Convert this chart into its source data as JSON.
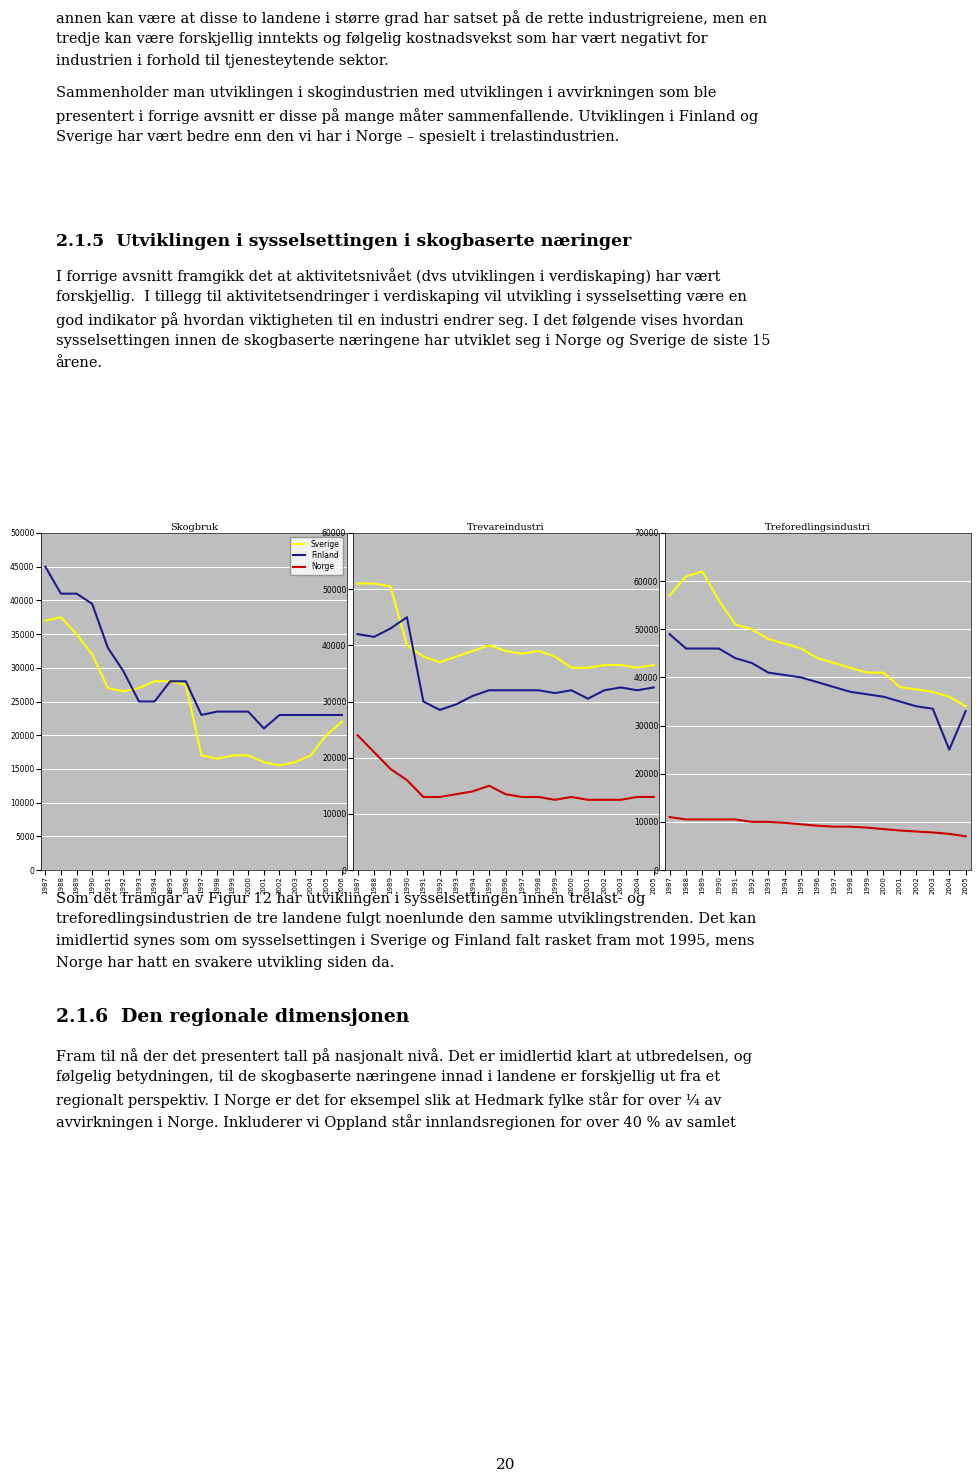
{
  "page_text_top": [
    "annen kan være at disse to landene i større grad har satset på de rette industrigreiene, men en",
    "tredje kan være forskjellig inntekts og følgelig kostnadsvekst som har vært negativt for",
    "industrien i forhold til tjenesteytende sektor.",
    "",
    "Sammenholder man utviklingen i skogindustrien med utviklingen i avvirkningen som ble",
    "presentert i forrige avsnitt er disse på mange måter sammenfallende. Utviklingen i Finland og",
    "Sverige har vært bedre enn den vi har i Norge – spesielt i trelastindustrien."
  ],
  "section_heading": "2.1.5  Utviklingen i sysselsettingen i skogbaserte næringer",
  "section_text": [
    "I forrige avsnitt framgikk det at aktivitetsnivået (dvs utviklingen i verdiskaping) har vært",
    "forskjellig.  I tillegg til aktivitetsendringer i verdiskaping vil utvikling i sysselsetting være en",
    "god indikator på hvordan viktigheten til en industri endrer seg. I det følgende vises hvordan",
    "sysselsettingen innen de skogbaserte næringene har utviklet seg i Norge og Sverige de siste 15",
    "årene."
  ],
  "bottom_text_1": [
    "Som det framgår av Figur 12 har utviklingen i sysselsettingen innen trelast- og",
    "treforedlingsindustrien de tre landene fulgt noenlunde den samme utviklingstrenden. Det kan",
    "imidlertid synes som om sysselsettingen i Sverige og Finland falt rasket fram mot 1995, mens",
    "Norge har hatt en svakere utvikling siden da."
  ],
  "section2_heading": "2.1.6  Den regionale dimensjonen",
  "bottom_text_2": [
    "Fram til nå der det presentert tall på nasjonalt nivå. Det er imidlertid klart at utbredelsen, og",
    "følgelig betydningen, til de skogbaserte næringene innad i landene er forskjellig ut fra et",
    "regionalt perspektiv. I Norge er det for eksempel slik at Hedmark fylke står for over ¼ av",
    "avvirkningen i Norge. Inkluderer vi Oppland står innlandsregionen for over 40 % av samlet"
  ],
  "page_number": "20",
  "charts": [
    {
      "title": "Skogbruk",
      "ylim": [
        0,
        50000
      ],
      "yticks": [
        0,
        5000,
        10000,
        15000,
        20000,
        25000,
        30000,
        35000,
        40000,
        45000,
        50000
      ],
      "years": [
        1987,
        1988,
        1989,
        1990,
        1991,
        1992,
        1993,
        1994,
        1995,
        1996,
        1997,
        1998,
        1999,
        2000,
        2001,
        2002,
        2003,
        2004,
        2005,
        2006
      ],
      "sverige": [
        37000,
        37500,
        35000,
        32000,
        27000,
        26500,
        27000,
        28000,
        28000,
        27500,
        17000,
        16500,
        17000,
        17000,
        16000,
        15500,
        16000,
        17000,
        20000,
        22000
      ],
      "finland": [
        45000,
        41000,
        41000,
        39500,
        33000,
        29500,
        25000,
        25000,
        28000,
        28000,
        23000,
        23500,
        23500,
        23500,
        21000,
        23000,
        23000,
        23000,
        23000,
        23000
      ],
      "norge": null,
      "has_legend": true
    },
    {
      "title": "Trevareindustri",
      "ylim": [
        0,
        60000
      ],
      "yticks": [
        0,
        10000,
        20000,
        30000,
        40000,
        50000,
        60000
      ],
      "years": [
        1987,
        1988,
        1989,
        1990,
        1991,
        1992,
        1993,
        1994,
        1995,
        1996,
        1997,
        1998,
        1999,
        2000,
        2001,
        2002,
        2003,
        2004,
        2005
      ],
      "sverige": [
        51000,
        51000,
        50500,
        40000,
        38000,
        37000,
        38000,
        39000,
        40000,
        39000,
        38500,
        39000,
        38000,
        36000,
        36000,
        36500,
        36500,
        36000,
        36500
      ],
      "finland": [
        42000,
        41500,
        43000,
        45000,
        30000,
        28500,
        29500,
        31000,
        32000,
        32000,
        32000,
        32000,
        31500,
        32000,
        30500,
        32000,
        32500,
        32000,
        32500
      ],
      "norge": [
        24000,
        21000,
        18000,
        16000,
        13000,
        13000,
        13500,
        14000,
        15000,
        13500,
        13000,
        13000,
        12500,
        13000,
        12500,
        12500,
        12500,
        13000,
        13000
      ],
      "has_legend": false
    },
    {
      "title": "Treforedlingsindustri",
      "ylim": [
        0,
        70000
      ],
      "yticks": [
        0,
        10000,
        20000,
        30000,
        40000,
        50000,
        60000,
        70000
      ],
      "years": [
        1987,
        1988,
        1989,
        1990,
        1991,
        1992,
        1993,
        1994,
        1995,
        1996,
        1997,
        1998,
        1999,
        2000,
        2001,
        2002,
        2003,
        2004,
        2005
      ],
      "sverige": [
        57000,
        61000,
        62000,
        56000,
        51000,
        50000,
        48000,
        47000,
        46000,
        44000,
        43000,
        42000,
        41000,
        41000,
        38000,
        37500,
        37000,
        36000,
        34000
      ],
      "finland": [
        49000,
        46000,
        46000,
        46000,
        44000,
        43000,
        41000,
        40500,
        40000,
        39000,
        38000,
        37000,
        36500,
        36000,
        35000,
        34000,
        33500,
        25000,
        33000
      ],
      "norge": [
        11000,
        10500,
        10500,
        10500,
        10500,
        10000,
        10000,
        9800,
        9500,
        9200,
        9000,
        9000,
        8800,
        8500,
        8200,
        8000,
        7800,
        7500,
        7000
      ],
      "has_legend": false
    }
  ],
  "colors": {
    "sverige": "#FFFF00",
    "finland": "#1C1C8C",
    "norge": "#CC0000",
    "chart_bg": "#BEBEBE",
    "grid_color": "#FFFFFF"
  },
  "body_fontsize": 10.5,
  "heading_fontsize": 12.5,
  "heading2_fontsize": 13.5
}
